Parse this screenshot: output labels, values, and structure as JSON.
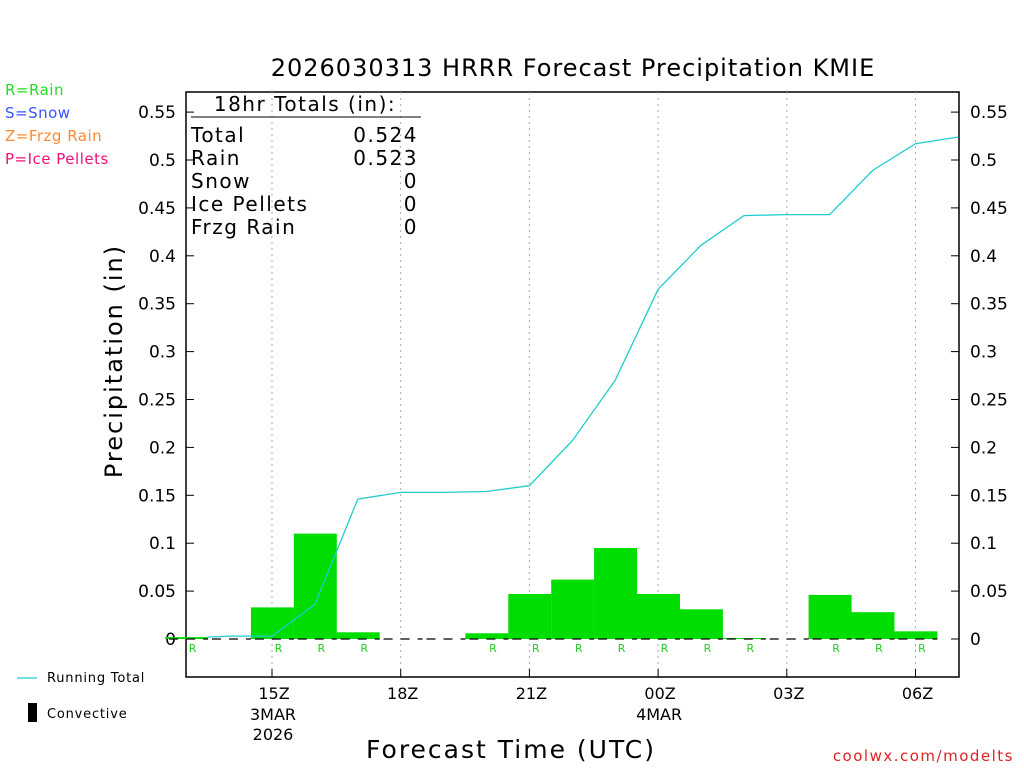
{
  "chart_data": {
    "type": "bar",
    "title": "2026030313 HRRR Forecast Precipitation KMIE",
    "xlabel": "Forecast Time (UTC)",
    "ylabel": "Precipitation (in)",
    "ylim": [
      -0.04,
      0.58
    ],
    "yticks": [
      0,
      0.05,
      0.1,
      0.15,
      0.2,
      0.25,
      0.3,
      0.35,
      0.4,
      0.45,
      0.5,
      0.55
    ],
    "ytick_labels": [
      "0",
      "0.05",
      "0.1",
      "0.15",
      "0.2",
      "0.25",
      "0.3",
      "0.35",
      "0.4",
      "0.45",
      "0.5",
      "0.55"
    ],
    "x_ticks": [
      {
        "label": "15Z",
        "hour": 15,
        "sub": [
          "3MAR",
          "2026"
        ]
      },
      {
        "label": "18Z",
        "hour": 18,
        "sub": []
      },
      {
        "label": "21Z",
        "hour": 21,
        "sub": []
      },
      {
        "label": "00Z",
        "hour": 24,
        "sub": [
          "4MAR"
        ]
      },
      {
        "label": "03Z",
        "hour": 27,
        "sub": []
      },
      {
        "label": "06Z",
        "hour": 30,
        "sub": []
      }
    ],
    "grid": "vertical dotted lines at labeled x ticks",
    "series": [
      {
        "name": "Rain",
        "kind": "hourly-bars",
        "color": "#00dd00",
        "points": [
          {
            "hour": 14,
            "value": 0.002,
            "ptype": "R"
          },
          {
            "hour": 15,
            "value": 0,
            "ptype": ""
          },
          {
            "hour": 16,
            "value": 0.033,
            "ptype": "R"
          },
          {
            "hour": 17,
            "value": 0.11,
            "ptype": "R"
          },
          {
            "hour": 18,
            "value": 0.007,
            "ptype": "R"
          },
          {
            "hour": 19,
            "value": 0,
            "ptype": ""
          },
          {
            "hour": 20,
            "value": 0,
            "ptype": ""
          },
          {
            "hour": 21,
            "value": 0.006,
            "ptype": "R"
          },
          {
            "hour": 22,
            "value": 0.047,
            "ptype": "R"
          },
          {
            "hour": 23,
            "value": 0.062,
            "ptype": "R"
          },
          {
            "hour": 24,
            "value": 0.095,
            "ptype": "R"
          },
          {
            "hour": 25,
            "value": 0.047,
            "ptype": "R"
          },
          {
            "hour": 26,
            "value": 0.031,
            "ptype": "R"
          },
          {
            "hour": 27,
            "value": 0.001,
            "ptype": "R"
          },
          {
            "hour": 28,
            "value": 0,
            "ptype": ""
          },
          {
            "hour": 29,
            "value": 0.046,
            "ptype": "R"
          },
          {
            "hour": 30,
            "value": 0.028,
            "ptype": "R"
          },
          {
            "hour": 31,
            "value": 0.008,
            "ptype": "R"
          }
        ]
      },
      {
        "name": "Running Total",
        "kind": "line",
        "color": "#22cccc",
        "points": [
          {
            "hour": 13.5,
            "value": 0.002
          },
          {
            "hour": 14,
            "value": 0.003
          },
          {
            "hour": 15,
            "value": 0.003
          },
          {
            "hour": 16,
            "value": 0.036
          },
          {
            "hour": 17,
            "value": 0.146
          },
          {
            "hour": 18,
            "value": 0.153
          },
          {
            "hour": 19,
            "value": 0.153
          },
          {
            "hour": 20,
            "value": 0.154
          },
          {
            "hour": 21,
            "value": 0.16
          },
          {
            "hour": 22,
            "value": 0.207
          },
          {
            "hour": 23,
            "value": 0.27
          },
          {
            "hour": 24,
            "value": 0.365
          },
          {
            "hour": 25,
            "value": 0.411
          },
          {
            "hour": 26,
            "value": 0.442
          },
          {
            "hour": 27,
            "value": 0.443
          },
          {
            "hour": 28,
            "value": 0.443
          },
          {
            "hour": 29,
            "value": 0.489
          },
          {
            "hour": 30,
            "value": 0.517
          },
          {
            "hour": 31,
            "value": 0.524
          }
        ]
      }
    ],
    "totals": {
      "heading": "18hr Totals (in):",
      "rows": [
        {
          "label": "Total",
          "value": "0.524"
        },
        {
          "label": "Rain",
          "value": "0.523"
        },
        {
          "label": "Snow",
          "value": "0"
        },
        {
          "label": "Ice Pellets",
          "value": "0"
        },
        {
          "label": "Frzg Rain",
          "value": "0"
        }
      ]
    },
    "ptype_legend": [
      {
        "text": "R=Rain",
        "color": "#22dd22"
      },
      {
        "text": "S=Snow",
        "color": "#3355ff"
      },
      {
        "text": "Z=Frzg Rain",
        "color": "#ff8833"
      },
      {
        "text": "P=Ice Pellets",
        "color": "#ee1177"
      }
    ],
    "legend": [
      {
        "text": "Running Total",
        "color": "#22cccc",
        "marker": "line"
      },
      {
        "text": "Convective",
        "color": "#000000",
        "marker": "bar"
      }
    ],
    "credit": {
      "text": "coolwx.com/modelts",
      "color": "#dd2222"
    }
  }
}
